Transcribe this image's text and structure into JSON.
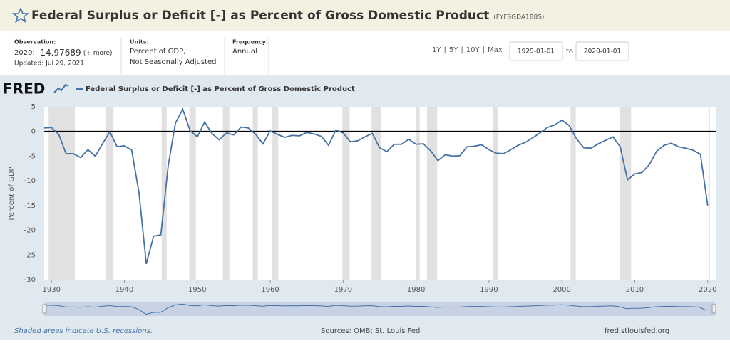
{
  "header": {
    "title": "Federal Surplus or Deficit [-] as Percent of Gross Domestic Product",
    "series_id": "(FYFSGDA188S)"
  },
  "info": {
    "observation_label": "Observation:",
    "observation_date": "2020:",
    "observation_value": "-14.97689",
    "more": "(+ more)",
    "updated": "Updated: Jul 29, 2021",
    "units_label": "Units:",
    "units_line1": "Percent of GDP,",
    "units_line2": "Not Seasonally Adjusted",
    "frequency_label": "Frequency:",
    "frequency": "Annual"
  },
  "controls": {
    "range_buttons": [
      "1Y",
      "5Y",
      "10Y",
      "Max"
    ],
    "separator": "|",
    "start_date": "1929-01-01",
    "to": "to",
    "end_date": "2020-01-01"
  },
  "logo": "FRED",
  "chart_data": {
    "type": "line",
    "ylabel": "Percent of GDP",
    "x": [
      1929,
      1930,
      1931,
      1932,
      1933,
      1934,
      1935,
      1936,
      1937,
      1938,
      1939,
      1940,
      1941,
      1942,
      1943,
      1944,
      1945,
      1946,
      1947,
      1948,
      1949,
      1950,
      1951,
      1952,
      1953,
      1954,
      1955,
      1956,
      1957,
      1958,
      1959,
      1960,
      1961,
      1962,
      1963,
      1964,
      1965,
      1966,
      1967,
      1968,
      1969,
      1970,
      1971,
      1972,
      1973,
      1974,
      1975,
      1976,
      1977,
      1978,
      1979,
      1980,
      1981,
      1982,
      1983,
      1984,
      1985,
      1986,
      1987,
      1988,
      1989,
      1990,
      1991,
      1992,
      1993,
      1994,
      1995,
      1996,
      1997,
      1998,
      1999,
      2000,
      2001,
      2002,
      2003,
      2004,
      2005,
      2006,
      2007,
      2008,
      2009,
      2010,
      2011,
      2012,
      2013,
      2014,
      2015,
      2016,
      2017,
      2018,
      2019,
      2020
    ],
    "series": [
      {
        "name": "Federal Surplus or Deficit [-] as Percent of Gross Domestic Product",
        "color": "#4572a7",
        "values": [
          0.7,
          0.8,
          -0.6,
          -4.5,
          -4.5,
          -5.3,
          -3.7,
          -5.0,
          -2.5,
          -0.1,
          -3.1,
          -2.9,
          -3.8,
          -12.4,
          -26.8,
          -21.2,
          -20.9,
          -7.0,
          1.7,
          4.5,
          0.2,
          -1.1,
          1.9,
          -0.4,
          -1.7,
          -0.3,
          -0.7,
          0.9,
          0.7,
          -0.6,
          -2.5,
          0.1,
          -0.6,
          -1.2,
          -0.8,
          -0.9,
          -0.2,
          -0.5,
          -1.0,
          -2.8,
          0.3,
          -0.3,
          -2.1,
          -1.9,
          -1.1,
          -0.4,
          -3.3,
          -4.1,
          -2.6,
          -2.6,
          -1.6,
          -2.6,
          -2.5,
          -3.9,
          -5.9,
          -4.7,
          -5.0,
          -4.9,
          -3.1,
          -3.0,
          -2.7,
          -3.7,
          -4.4,
          -4.5,
          -3.7,
          -2.8,
          -2.2,
          -1.3,
          -0.3,
          0.8,
          1.3,
          2.3,
          1.2,
          -1.5,
          -3.3,
          -3.4,
          -2.5,
          -1.8,
          -1.1,
          -3.1,
          -9.8,
          -8.6,
          -8.3,
          -6.7,
          -4.0,
          -2.8,
          -2.4,
          -3.1,
          -3.4,
          -3.8,
          -4.6,
          -14.97689
        ]
      }
    ],
    "recessions": [
      [
        1929.6,
        1933.2
      ],
      [
        1937.4,
        1938.5
      ],
      [
        1945.1,
        1945.8
      ],
      [
        1948.9,
        1949.8
      ],
      [
        1953.5,
        1954.4
      ],
      [
        1957.6,
        1958.3
      ],
      [
        1960.3,
        1961.1
      ],
      [
        1969.9,
        1970.9
      ],
      [
        1973.9,
        1975.2
      ],
      [
        1980.0,
        1980.5
      ],
      [
        1981.5,
        1982.9
      ],
      [
        1990.5,
        1991.2
      ],
      [
        2001.2,
        2001.9
      ],
      [
        2007.9,
        2009.5
      ],
      [
        2020.1,
        2020.3
      ]
    ],
    "xlim": [
      1929,
      2021.2
    ],
    "xticks": [
      1930,
      1940,
      1950,
      1960,
      1970,
      1980,
      1990,
      2000,
      2010,
      2020
    ],
    "ylim": [
      -30,
      5
    ],
    "yticks": [
      -30,
      -25,
      -20,
      -15,
      -10,
      -5,
      0,
      5
    ],
    "grid": false
  },
  "footer": {
    "note": "Shaded areas indicate U.S. recessions.",
    "sources": "Sources: OMB; St. Louis Fed",
    "site": "fred.stlouisfed.org"
  }
}
